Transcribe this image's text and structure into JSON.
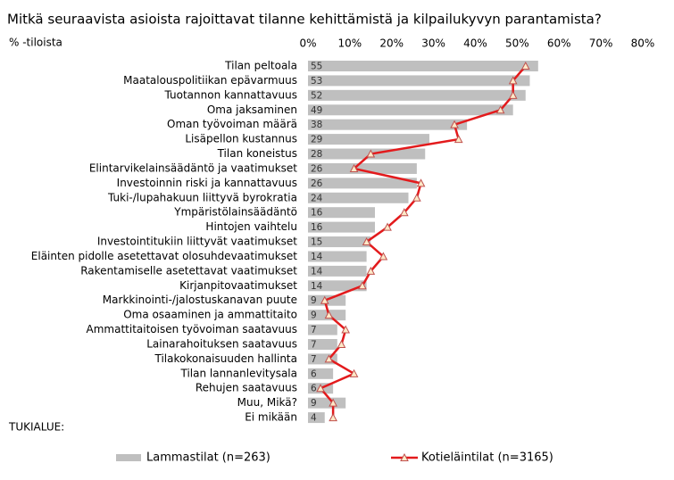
{
  "chart_data": {
    "type": "bar-line",
    "title": "Mitkä seuraavista asioista rajoittavat tilanne kehittämistä ja kilpailukyvyn parantamista?",
    "subtitle": "% -tiloista",
    "annotation": "TUKIALUE:",
    "categories": [
      "Tilan peltoala",
      "Maatalouspolitiikan epävarmuus",
      "Tuotannon kannattavuus",
      "Oma jaksaminen",
      "Oman työvoiman määrä",
      "Lisäpellon kustannus",
      "Tilan koneistus",
      "Elintarvikelainsäädäntö ja vaatimukset",
      "Investoinnin riski ja kannattavuus",
      "Tuki-/lupahakuun liittyvä byrokratia",
      "Ympäristölainsäädäntö",
      "Hintojen vaihtelu",
      "Investointitukiin liittyvät vaatimukset",
      "Eläinten pidolle asetettavat olosuhdevaatimukset",
      "Rakentamiselle asetettavat vaatimukset",
      "Kirjanpitovaatimukset",
      "Markkinointi-/jalostuskanavan puute",
      "Oma osaaminen ja ammattitaito",
      "Ammattitaitoisen työvoiman saatavuus",
      "Lainarahoituksen saatavuus",
      "Tilakokonaisuuden hallinta",
      "Tilan lannanlevitysala",
      "Rehujen saatavuus",
      "Muu, Mikä?",
      "Ei mikään"
    ],
    "series": [
      {
        "name": "Lammastilat (n=263)",
        "kind": "bar",
        "color": "#bfbfbf",
        "values": [
          55,
          53,
          52,
          49,
          38,
          29,
          28,
          26,
          26,
          24,
          16,
          16,
          15,
          14,
          14,
          14,
          9,
          9,
          7,
          7,
          7,
          6,
          6,
          9,
          4
        ]
      },
      {
        "name": "Kotieläintilat (n=3165)",
        "kind": "line",
        "color": "#e31a1c",
        "values": [
          52,
          49,
          49,
          46,
          35,
          36,
          15,
          11,
          27,
          26,
          23,
          19,
          14,
          18,
          15,
          13,
          4,
          5,
          9,
          8,
          5,
          11,
          3,
          6,
          6
        ]
      }
    ],
    "xlim": [
      0,
      80
    ],
    "xticks": [
      {
        "value": 0,
        "label": "0%"
      },
      {
        "value": 10,
        "label": "10%"
      },
      {
        "value": 20,
        "label": "20%"
      },
      {
        "value": 30,
        "label": "30%"
      },
      {
        "value": 40,
        "label": "40%"
      },
      {
        "value": 50,
        "label": "50%"
      },
      {
        "value": 60,
        "label": "60%"
      },
      {
        "value": 70,
        "label": "70%"
      },
      {
        "value": 80,
        "label": "80%"
      }
    ]
  }
}
